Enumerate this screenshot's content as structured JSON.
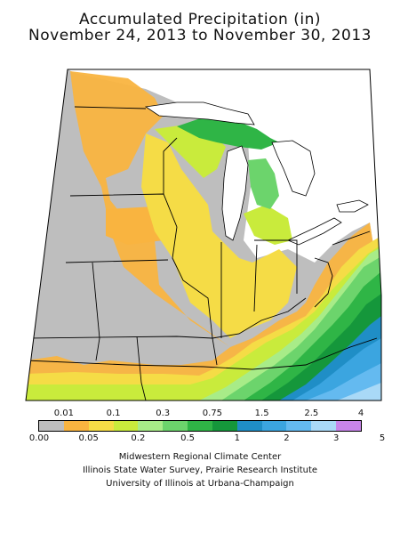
{
  "title": {
    "line1": "Accumulated Precipitation (in)",
    "line2": "November 24, 2013 to November 30, 2013"
  },
  "legend": {
    "upper_labels": [
      "0.01",
      "0.1",
      "0.3",
      "0.75",
      "1.5",
      "2.5",
      "4"
    ],
    "lower_labels": [
      "0.00",
      "0.05",
      "0.2",
      "0.5",
      "1",
      "2",
      "3",
      "5"
    ],
    "colors": [
      "#bebebe",
      "#f9b440",
      "#f5dc46",
      "#c9eb3c",
      "#a8ec88",
      "#6cd46c",
      "#2fb546",
      "#15973b",
      "#1f8ec6",
      "#3ba5e0",
      "#64baf0",
      "#a9d9f7",
      "#c885ea"
    ]
  },
  "credits": {
    "line1": "Midwestern Regional Climate Center",
    "line2": "Illinois State Water Survey, Prairie Research Institute",
    "line3": "University of Illinois at Urbana-Champaign"
  }
}
